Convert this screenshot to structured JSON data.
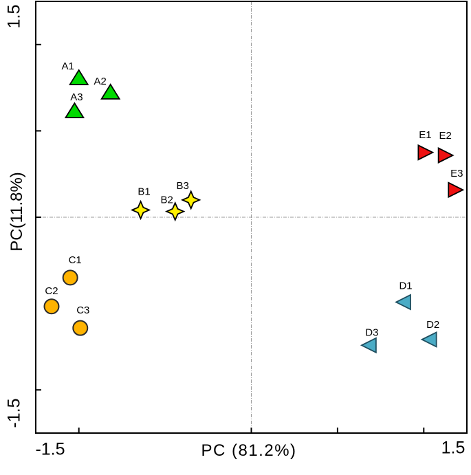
{
  "figure": {
    "x_axis_title": "PC (81.2%)",
    "y_axis_title": "PC(11.8%)",
    "x_min_label": "-1.5",
    "x_max_label": "1.5",
    "y_min_label": "-1.5",
    "y_max_label": "1.5"
  },
  "style_colors": {
    "axis": "#000000",
    "crosshair": "#999999",
    "group_a_green": "#00d900",
    "group_b_yellow": "#fff000",
    "group_c_orange": "#ffb300",
    "group_d_teal": "#4bacc6",
    "group_e_red": "#ee1111"
  },
  "chart_data": {
    "type": "scatter",
    "title": "",
    "xlabel": "PC (81.2%)",
    "ylabel": "PC(11.8%)",
    "xlim": [
      -1.5,
      1.5
    ],
    "ylim": [
      -1.5,
      1.5
    ],
    "x_ticks": [
      -1.2,
      0,
      0.6,
      1.2
    ],
    "y_ticks": [
      -1.2,
      0,
      0.6,
      1.2
    ],
    "grid": "crosshair-dashed-at-zero",
    "legend": "none",
    "series": [
      {
        "name": "A",
        "marker": "triangle-up",
        "fill": "#00d900",
        "stroke": "#000000",
        "points": [
          {
            "label": "A1",
            "x": -1.2,
            "y": 0.97,
            "label_offset": [
              -16,
              -17
            ]
          },
          {
            "label": "A2",
            "x": -0.98,
            "y": 0.87,
            "label_offset": [
              -15,
              -16
            ]
          },
          {
            "label": "A3",
            "x": -1.23,
            "y": 0.74,
            "label_offset": [
              3,
              -20
            ]
          }
        ]
      },
      {
        "name": "B",
        "marker": "star4",
        "fill": "#fff000",
        "stroke": "#000000",
        "points": [
          {
            "label": "B1",
            "x": -0.77,
            "y": 0.05,
            "label_offset": [
              5,
              -27
            ]
          },
          {
            "label": "B2",
            "x": -0.53,
            "y": 0.04,
            "label_offset": [
              -12,
              -17
            ]
          },
          {
            "label": "B3",
            "x": -0.42,
            "y": 0.12,
            "label_offset": [
              -12,
              -21
            ]
          }
        ]
      },
      {
        "name": "C",
        "marker": "circle",
        "fill": "#ffb300",
        "stroke": "#2b2b2b",
        "points": [
          {
            "label": "C1",
            "x": -1.26,
            "y": -0.42,
            "label_offset": [
              7,
              -26
            ]
          },
          {
            "label": "C2",
            "x": -1.39,
            "y": -0.62,
            "label_offset": [
              0,
              -23
            ]
          },
          {
            "label": "C3",
            "x": -1.19,
            "y": -0.77,
            "label_offset": [
              4,
              -26
            ]
          }
        ]
      },
      {
        "name": "D",
        "marker": "triangle-left",
        "fill": "#4bacc6",
        "stroke": "#1f4e5f",
        "points": [
          {
            "label": "D1",
            "x": 1.06,
            "y": -0.59,
            "label_offset": [
              3,
              -24
            ]
          },
          {
            "label": "D2",
            "x": 1.24,
            "y": -0.85,
            "label_offset": [
              5,
              -22
            ]
          },
          {
            "label": "D3",
            "x": 0.82,
            "y": -0.89,
            "label_offset": [
              4,
              -19
            ]
          }
        ]
      },
      {
        "name": "E",
        "marker": "triangle-right",
        "fill": "#ee1111",
        "stroke": "#000000",
        "points": [
          {
            "label": "E1",
            "x": 1.21,
            "y": 0.45,
            "label_offset": [
              0,
              -26
            ]
          },
          {
            "label": "E2",
            "x": 1.35,
            "y": 0.43,
            "label_offset": [
              0,
              -29
            ]
          },
          {
            "label": "E3",
            "x": 1.42,
            "y": 0.19,
            "label_offset": [
              2,
              -24
            ]
          }
        ]
      }
    ]
  }
}
